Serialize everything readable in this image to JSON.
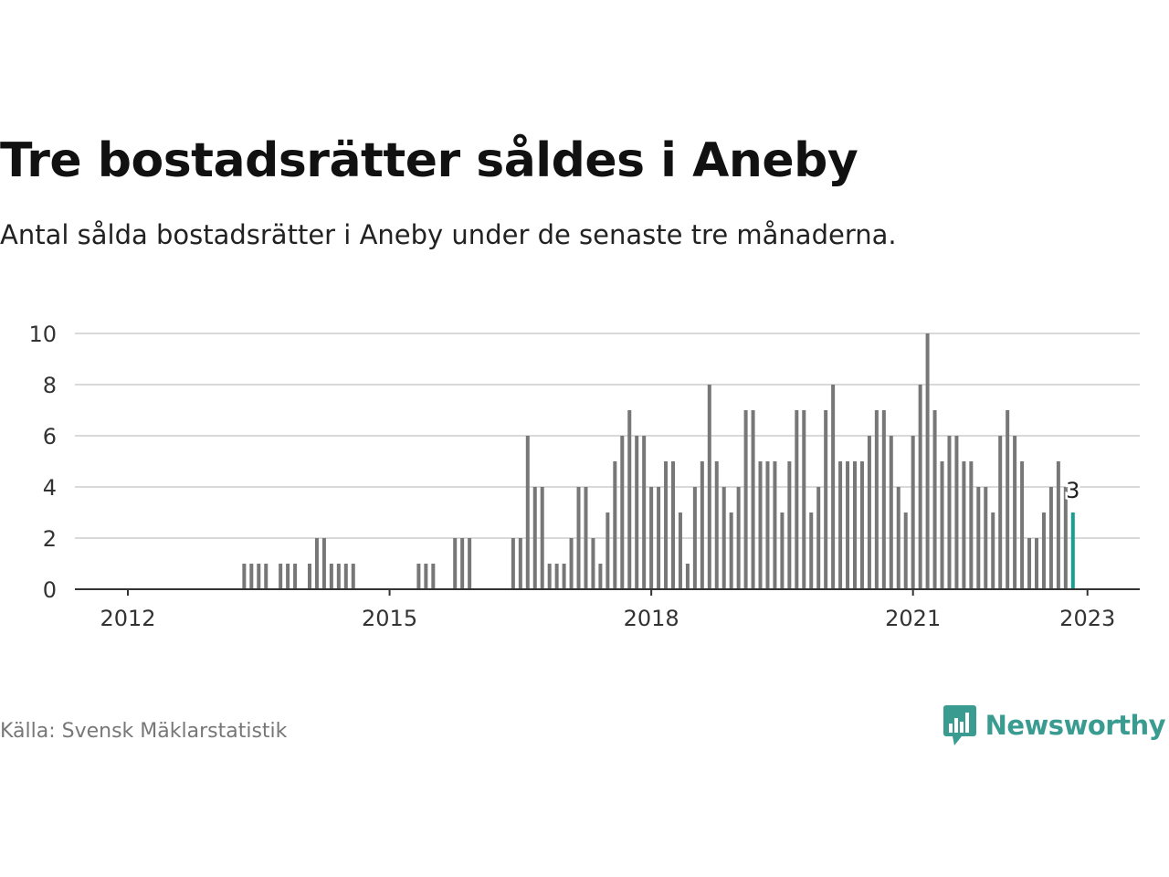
{
  "title": "Tre bostadsrätter såldes i Aneby",
  "subtitle": "Antal sålda bostadsrätter i Aneby under de senaste tre månaderna.",
  "source": "Källa: Svensk Mäklarstatistik",
  "brand": "Newsworthy",
  "colors": {
    "bar": "#777777",
    "highlight": "#1a9e93",
    "grid": "#d9d9d9",
    "axis": "#333333",
    "brand": "#3a9c91"
  },
  "chart_data": {
    "type": "bar",
    "title": "Tre bostadsrätter såldes i Aneby",
    "xlabel": "",
    "ylabel": "",
    "ylim": [
      0,
      10
    ],
    "yticks": [
      0,
      2,
      4,
      6,
      8,
      10
    ],
    "xticks": [
      {
        "label": "2012",
        "index": 0
      },
      {
        "label": "2015",
        "index": 36
      },
      {
        "label": "2018",
        "index": 72
      },
      {
        "label": "2021",
        "index": 108
      },
      {
        "label": "2023",
        "index": 132
      }
    ],
    "start": "2012-01",
    "end": "2023-01",
    "frequency": "monthly",
    "values": [
      0,
      0,
      0,
      0,
      0,
      0,
      0,
      0,
      0,
      0,
      0,
      0,
      0,
      0,
      0,
      0,
      1,
      1,
      1,
      1,
      0,
      1,
      1,
      1,
      0,
      1,
      2,
      2,
      1,
      1,
      1,
      1,
      0,
      0,
      0,
      0,
      0,
      0,
      0,
      0,
      1,
      1,
      1,
      0,
      0,
      2,
      2,
      2,
      0,
      0,
      0,
      0,
      0,
      2,
      2,
      6,
      4,
      4,
      1,
      1,
      1,
      2,
      4,
      4,
      2,
      1,
      3,
      5,
      6,
      7,
      6,
      6,
      4,
      4,
      5,
      5,
      3,
      1,
      4,
      5,
      8,
      5,
      4,
      3,
      4,
      7,
      7,
      5,
      5,
      5,
      3,
      5,
      7,
      7,
      3,
      4,
      7,
      8,
      5,
      5,
      5,
      5,
      6,
      7,
      7,
      6,
      4,
      3,
      6,
      8,
      10,
      7,
      5,
      6,
      6,
      5,
      5,
      4,
      4,
      3,
      6,
      7,
      6,
      5,
      2,
      2,
      3,
      4,
      5,
      4,
      3
    ],
    "highlight_last": 1,
    "last_value_label": "3"
  }
}
